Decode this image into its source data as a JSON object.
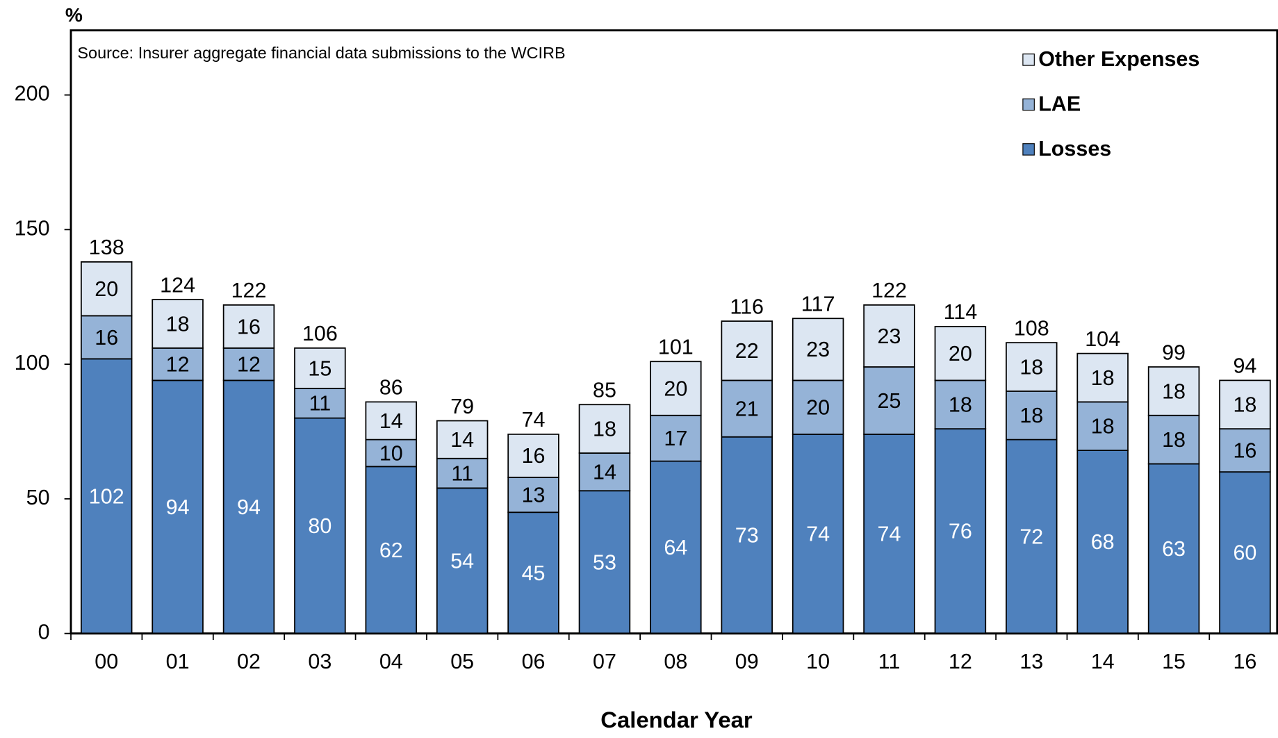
{
  "chart_data": {
    "type": "stacked-bar",
    "y_label": "%",
    "x_label": "Calendar Year",
    "annotation": "Source: Insurer aggregate financial data submissions to the WCIRB",
    "categories": [
      "00",
      "01",
      "02",
      "03",
      "04",
      "05",
      "06",
      "07",
      "08",
      "09",
      "10",
      "11",
      "12",
      "13",
      "14",
      "15",
      "16"
    ],
    "series": [
      {
        "name": "Losses",
        "color": "#4f81bd",
        "label_color": "#ffffff",
        "values": [
          102,
          94,
          94,
          80,
          62,
          54,
          45,
          53,
          64,
          73,
          74,
          74,
          76,
          72,
          68,
          63,
          60
        ]
      },
      {
        "name": "LAE",
        "color": "#95b3d7",
        "label_color": "#000000",
        "values": [
          16,
          12,
          12,
          11,
          10,
          11,
          13,
          14,
          17,
          21,
          20,
          25,
          18,
          18,
          18,
          18,
          16
        ]
      },
      {
        "name": "Other Expenses",
        "color": "#dce6f2",
        "label_color": "#000000",
        "values": [
          20,
          18,
          16,
          15,
          14,
          14,
          16,
          18,
          20,
          22,
          23,
          23,
          20,
          18,
          18,
          18,
          18
        ]
      }
    ],
    "totals": [
      138,
      124,
      122,
      106,
      86,
      79,
      74,
      85,
      101,
      116,
      117,
      122,
      114,
      108,
      104,
      99,
      94
    ],
    "ylim": [
      0,
      224
    ],
    "yticks": [
      0,
      50,
      100,
      150,
      200
    ],
    "legend": "top-right"
  }
}
